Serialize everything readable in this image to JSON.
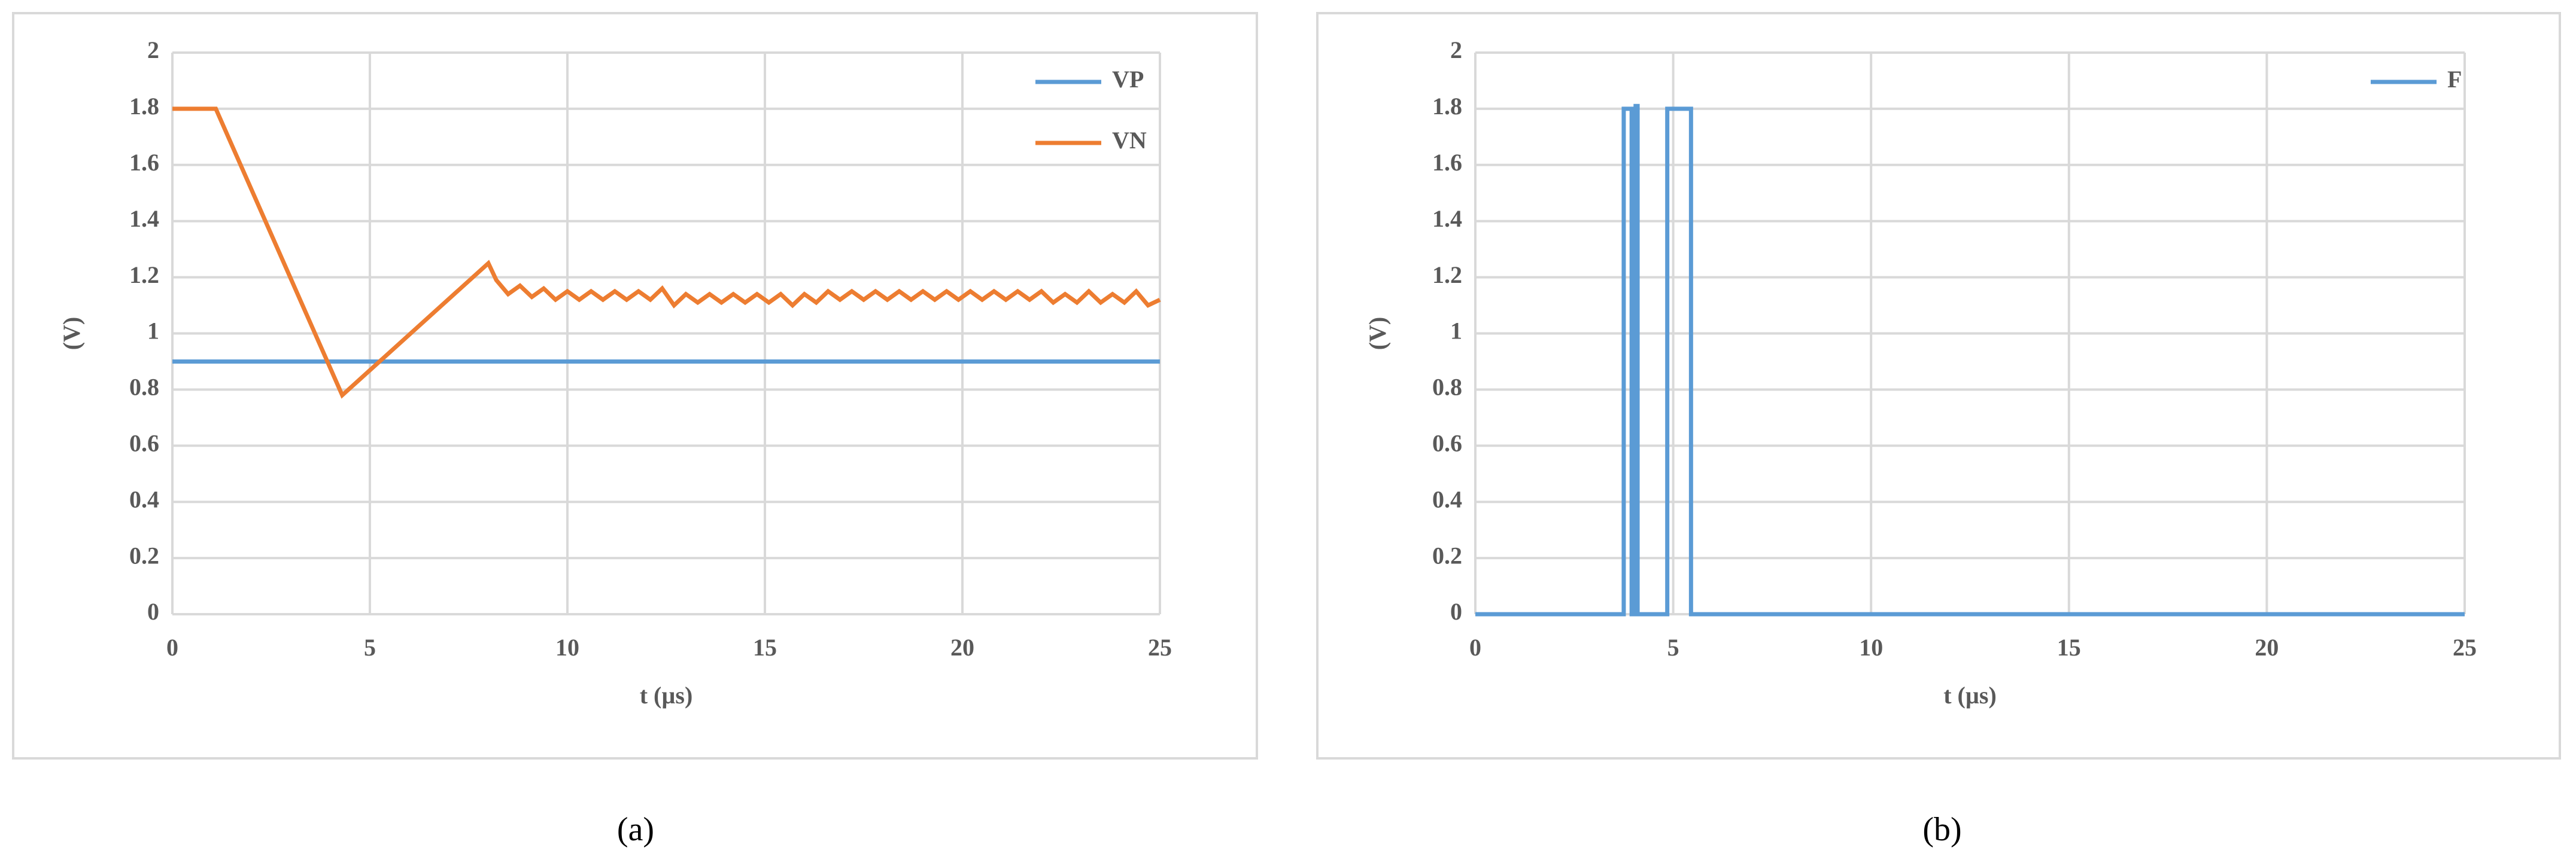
{
  "chart_data": [
    {
      "type": "line",
      "caption": "(a)",
      "ylabel": "(V)",
      "xlabel": "t (µs)",
      "xlim": [
        0,
        25
      ],
      "xticks": [
        0,
        5,
        10,
        15,
        20,
        25
      ],
      "ylim": [
        0,
        2
      ],
      "yticks": [
        0,
        0.2,
        0.4,
        0.6,
        0.8,
        1,
        1.2,
        1.4,
        1.6,
        1.8,
        2
      ],
      "grid": true,
      "legend": "upper right",
      "series": [
        {
          "name": "VP",
          "color": "#5b9bd5",
          "x": [
            0,
            25
          ],
          "values": [
            0.9,
            0.9
          ]
        },
        {
          "name": "VN",
          "color": "#ed7d31",
          "x": [
            0,
            1.1,
            4.3,
            8.0,
            8.2,
            8.5,
            8.8,
            9.1,
            9.4,
            9.7,
            10.0,
            10.3,
            10.6,
            10.9,
            11.2,
            11.5,
            11.8,
            12.1,
            12.4,
            12.7,
            13.0,
            13.3,
            13.6,
            13.9,
            14.2,
            14.5,
            14.8,
            15.1,
            15.4,
            15.7,
            16.0,
            16.3,
            16.6,
            16.9,
            17.2,
            17.5,
            17.8,
            18.1,
            18.4,
            18.7,
            19.0,
            19.3,
            19.6,
            19.9,
            20.2,
            20.5,
            20.8,
            21.1,
            21.4,
            21.7,
            22.0,
            22.3,
            22.6,
            22.9,
            23.2,
            23.5,
            23.8,
            24.1,
            24.4,
            24.7,
            25.0
          ],
          "values": [
            1.8,
            1.8,
            0.78,
            1.25,
            1.19,
            1.14,
            1.17,
            1.13,
            1.16,
            1.12,
            1.15,
            1.12,
            1.15,
            1.12,
            1.15,
            1.12,
            1.15,
            1.12,
            1.16,
            1.1,
            1.14,
            1.11,
            1.14,
            1.11,
            1.14,
            1.11,
            1.14,
            1.11,
            1.14,
            1.1,
            1.14,
            1.11,
            1.15,
            1.12,
            1.15,
            1.12,
            1.15,
            1.12,
            1.15,
            1.12,
            1.15,
            1.12,
            1.15,
            1.12,
            1.15,
            1.12,
            1.15,
            1.12,
            1.15,
            1.12,
            1.15,
            1.11,
            1.14,
            1.11,
            1.15,
            1.11,
            1.14,
            1.11,
            1.15,
            1.1,
            1.12
          ]
        }
      ]
    },
    {
      "type": "line",
      "caption": "(b)",
      "ylabel": "(V)",
      "xlabel": "t (µs)",
      "xlim": [
        0,
        25
      ],
      "xticks": [
        0,
        5,
        10,
        15,
        20,
        25
      ],
      "ylim": [
        0,
        2
      ],
      "yticks": [
        0,
        0.2,
        0.4,
        0.6,
        0.8,
        1,
        1.2,
        1.4,
        1.6,
        1.8,
        2
      ],
      "grid": true,
      "legend": "upper right",
      "series": [
        {
          "name": "F",
          "color": "#5b9bd5",
          "x": [
            0,
            3.75,
            3.75,
            3.95,
            3.95,
            4.05,
            4.05,
            4.1,
            4.1,
            4.85,
            4.85,
            5.45,
            5.45,
            25
          ],
          "values": [
            0,
            0,
            1.8,
            1.8,
            0,
            0,
            1.81,
            1.81,
            0,
            0,
            1.8,
            1.8,
            0,
            0
          ]
        }
      ]
    }
  ]
}
